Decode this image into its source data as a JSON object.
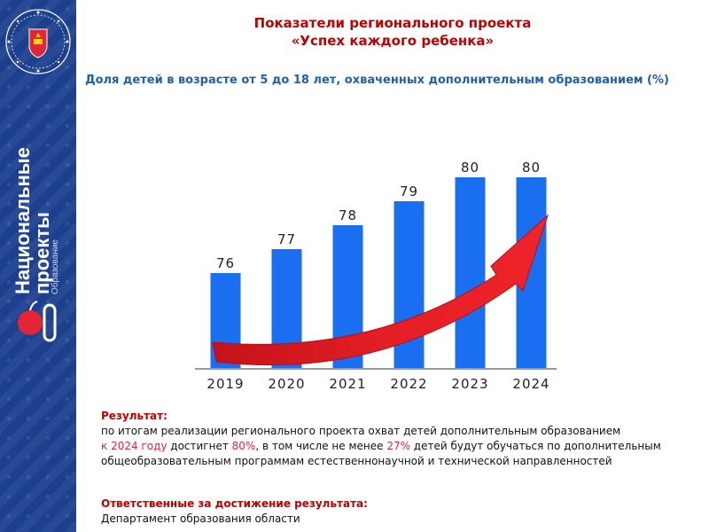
{
  "header": {
    "title_line1": "Показатели регионального проекта",
    "title_line2": "«Успех каждого ребенка»",
    "subtitle": "Доля детей в возрасте от 5 до 18 лет, охваченных дополнительным образованием  (%)"
  },
  "sidebar": {
    "logo_line1": "Национальные",
    "logo_line2": "проекты",
    "logo_line3": "Образование"
  },
  "chart_data": {
    "type": "bar",
    "categories": [
      "2019",
      "2020",
      "2021",
      "2022",
      "2023",
      "2024"
    ],
    "values": [
      76,
      77,
      78,
      79,
      80,
      80
    ],
    "data_labels": [
      "76",
      "77",
      "78",
      "79",
      "80",
      "80"
    ],
    "bar_color": "#1a6ef0",
    "arrow_color": "#e31e24",
    "grid": false,
    "legend": "none"
  },
  "result": {
    "heading": "Результат:",
    "text_part1": "по итогам реализации регионального проекта охват детей дополнительным образованием",
    "text_red1": "к 2024 году",
    "text_part2": " достигнет ",
    "text_red2": "80%",
    "text_part3": ", в том числе не менее ",
    "text_red3": "27%",
    "text_part4": " детей будут обучаться по дополнительным общеобразовательным программам естественнонаучной и технической направленностей",
    "responsible_heading": "Ответственные за достижение результата:",
    "responsible": "Департамент образования области"
  },
  "colors": {
    "sidebar": "#1c3f8e",
    "title": "#c00000",
    "subtitle": "#1f5fb0"
  }
}
